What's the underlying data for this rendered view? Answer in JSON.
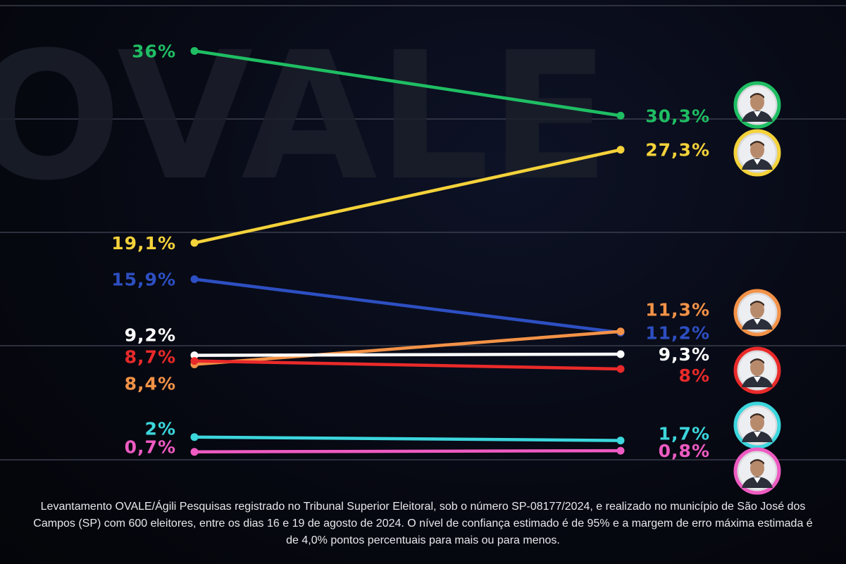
{
  "watermark": "OVALE",
  "chart_data": {
    "type": "line",
    "x": [
      "",
      ""
    ],
    "ylim": [
      0,
      40
    ],
    "grid": true,
    "legend": "none",
    "series": [
      {
        "values": [
          36,
          30.3
        ],
        "labels": [
          "36%",
          "30,3%"
        ],
        "color": "#1fbe63",
        "avatar": true
      },
      {
        "values": [
          19.1,
          27.3
        ],
        "labels": [
          "19,1%",
          "27,3%"
        ],
        "color": "#f4d23a",
        "avatar": true
      },
      {
        "values": [
          15.9,
          11.2
        ],
        "labels": [
          "15,9%",
          "11,2%"
        ],
        "color": "#2d4fc2",
        "avatar": false
      },
      {
        "values": [
          8.4,
          11.3
        ],
        "labels": [
          "8,4%",
          "11,3%"
        ],
        "color": "#f39247",
        "avatar": true
      },
      {
        "values": [
          9.2,
          9.3
        ],
        "labels": [
          "9,2%",
          "9,3%"
        ],
        "color": "#ffffff",
        "avatar": false
      },
      {
        "values": [
          8.7,
          8
        ],
        "labels": [
          "8,7%",
          "8%"
        ],
        "color": "#ea2a2a",
        "avatar": true
      },
      {
        "values": [
          2,
          1.7
        ],
        "labels": [
          "2%",
          "1,7%"
        ],
        "color": "#3cd6dd",
        "avatar": true
      },
      {
        "values": [
          0.7,
          0.8
        ],
        "labels": [
          "0,7%",
          "0,8%"
        ],
        "color": "#ee5bc2",
        "avatar": true
      }
    ]
  },
  "footnote": "Levantamento OVALE/Ágili Pesquisas registrado no Tribunal Superior Eleitoral, sob o número SP-08177/2024, e realizado no município de São José dos Campos (SP) com 600 eleitores, entre os dias 16 e 19 de agosto de 2024. O nível de confiança estimado é de 95% e a margem de erro máxima estimada é de 4,0% pontos percentuais para mais ou para menos."
}
